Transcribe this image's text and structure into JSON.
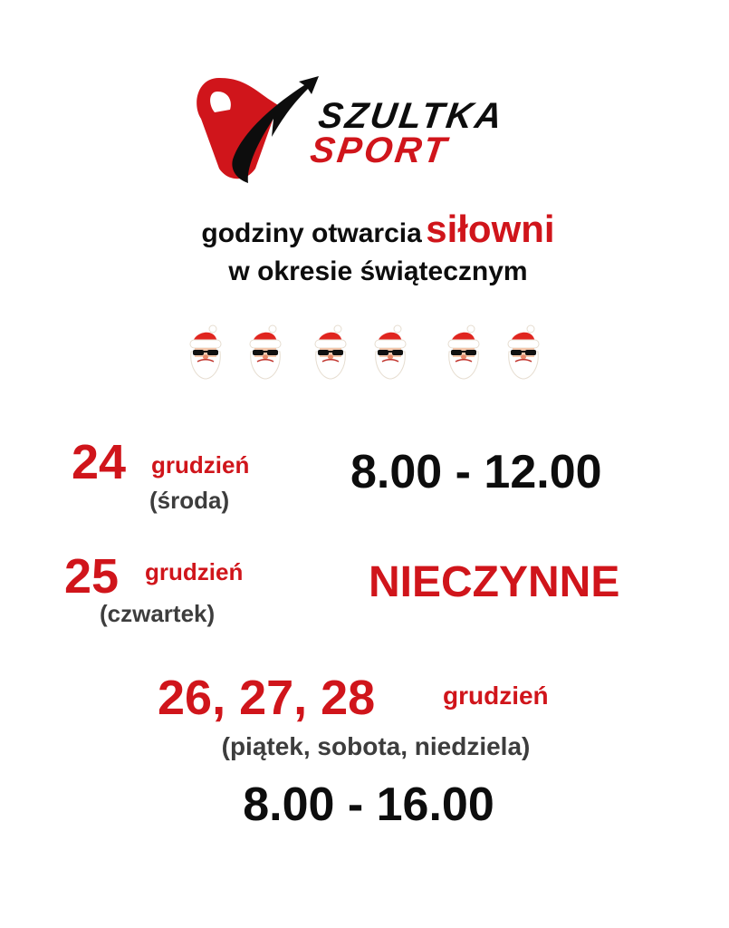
{
  "logo": {
    "line1": "SZULTKA",
    "line2": "SPORT"
  },
  "heading": {
    "part1": "godziny otwarcia",
    "highlight": "siłowni",
    "line2": "w okresie świątecznym"
  },
  "decoration": {
    "icon": "santa-with-sunglasses-icon",
    "count": 6
  },
  "schedule": [
    {
      "day": "24",
      "month": "grudzień",
      "weekday": "(środa)",
      "hours": "8.00 - 12.00"
    },
    {
      "day": "25",
      "month": "grudzień",
      "weekday": "(czwartek)",
      "hours": "NIECZYNNE"
    },
    {
      "day": "26, 27, 28",
      "month": "grudzień",
      "weekday": "(piątek, sobota, niedziela)",
      "hours": "8.00 - 16.00"
    }
  ],
  "colors": {
    "accent": "#d0151b",
    "text": "#0d0d0d",
    "secondary": "#3d3d3d"
  }
}
